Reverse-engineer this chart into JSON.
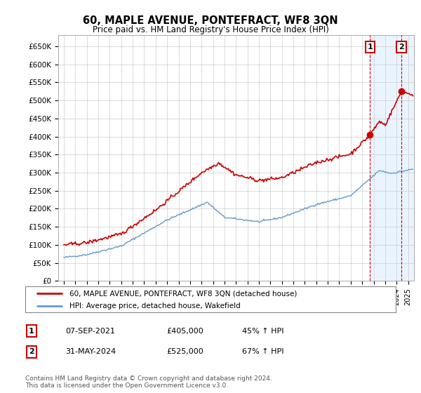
{
  "title": "60, MAPLE AVENUE, PONTEFRACT, WF8 3QN",
  "subtitle": "Price paid vs. HM Land Registry's House Price Index (HPI)",
  "ylabel_ticks": [
    "£0",
    "£50K",
    "£100K",
    "£150K",
    "£200K",
    "£250K",
    "£300K",
    "£350K",
    "£400K",
    "£450K",
    "£500K",
    "£550K",
    "£600K",
    "£650K"
  ],
  "ytick_values": [
    0,
    50000,
    100000,
    150000,
    200000,
    250000,
    300000,
    350000,
    400000,
    450000,
    500000,
    550000,
    600000,
    650000
  ],
  "ylim": [
    0,
    680000
  ],
  "xlim_start": 1994.5,
  "xlim_end": 2025.5,
  "transaction1_date": 2021.68,
  "transaction1_price": 405000,
  "transaction1_label": "1",
  "transaction2_date": 2024.41,
  "transaction2_price": 525000,
  "transaction2_label": "2",
  "legend_line1": "60, MAPLE AVENUE, PONTEFRACT, WF8 3QN (detached house)",
  "legend_line2": "HPI: Average price, detached house, Wakefield",
  "table_row1": [
    "1",
    "07-SEP-2021",
    "£405,000",
    "45% ↑ HPI"
  ],
  "table_row2": [
    "2",
    "31-MAY-2024",
    "£525,000",
    "67% ↑ HPI"
  ],
  "footnote1": "Contains HM Land Registry data © Crown copyright and database right 2024.",
  "footnote2": "This data is licensed under the Open Government Licence v3.0.",
  "red_color": "#cc0000",
  "blue_color": "#6699cc",
  "grid_color": "#cccccc",
  "shaded_color": "#ddeeff",
  "background_color": "#ffffff"
}
